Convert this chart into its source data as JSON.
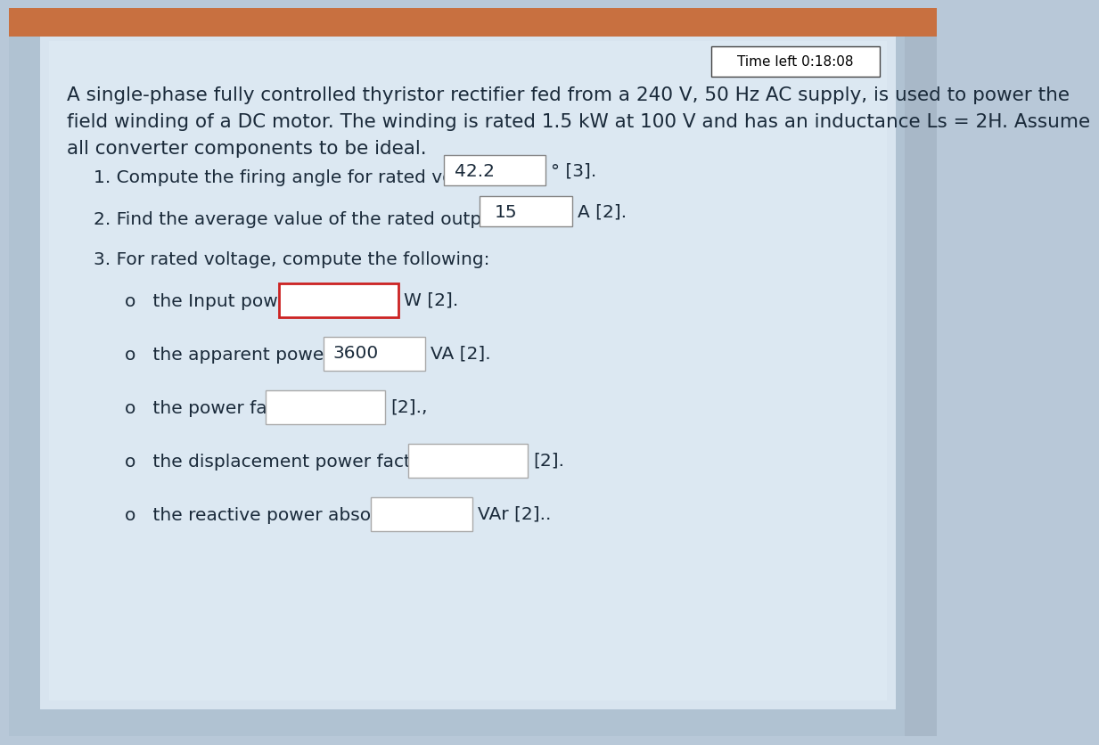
{
  "outer_bg": "#b8c8d8",
  "panel_bg": "#cddae6",
  "top_orange": "#c87848",
  "right_panel_bg": "#d4dde8",
  "text_color": "#1a2a3a",
  "time_box_text": "Time left 0:18:08",
  "line1": "A single-phase fully controlled thyristor rectifier fed from a 240 V, 50 Hz AC supply, is used to power the",
  "line2": "field winding of a DC motor. The winding is rated 1.5 kW at 100 V and has an inductance Ls = 2H. Assume",
  "line3": "all converter components to be ideal.",
  "q1": "1. Compute the firing angle for rated voltage",
  "q1_ans": "42.2",
  "q1_unit": "° [3].",
  "q2": "2. Find the average value of the rated output current",
  "q2_ans": "15",
  "q2_unit": "A [2].",
  "q3": "3. For rated voltage, compute the following:",
  "sub1": "o   the Input power",
  "sub1_ans": "",
  "sub1_unit": "W [2].",
  "sub1_red": true,
  "sub2": "o   the apparent power",
  "sub2_ans": "3600",
  "sub2_unit": "VA [2].",
  "sub2_red": false,
  "sub3": "o   the power factor",
  "sub3_ans": "",
  "sub3_unit": "[2].,",
  "sub3_red": false,
  "sub4": "o   the displacement power factor",
  "sub4_ans": "",
  "sub4_unit": "[2].",
  "sub4_red": false,
  "sub5": "o   the reactive power absorbed",
  "sub5_ans": "",
  "sub5_unit": "VAr [2]..",
  "sub5_red": false
}
